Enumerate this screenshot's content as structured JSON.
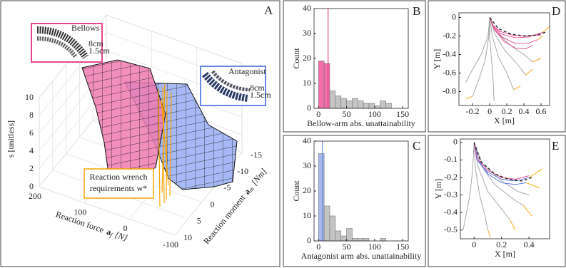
{
  "chart_data": [
    {
      "type": "surface3d",
      "label": "A",
      "zlabel": "s [unitless]",
      "zlim": [
        0,
        10
      ],
      "zticks": [
        0,
        2,
        4,
        6,
        8,
        10
      ],
      "xlabel": "Reaction force",
      "xlabel_symbol": "a",
      "xlabel_sub": "f",
      "xlabel_unit": "[N]",
      "xlim": [
        -100,
        200
      ],
      "xticks": [
        200,
        100,
        0,
        -100
      ],
      "ylabel": "Reaction moment",
      "ylabel_symbol": "a",
      "ylabel_sub": "m",
      "ylabel_unit": "[Nm]",
      "ylim": [
        -15,
        10
      ],
      "yticks": [
        10,
        5,
        0,
        -5,
        -10,
        -15
      ],
      "bellows": {
        "title": "Bellows",
        "color": "#e8468f",
        "dims": [
          "8cm",
          "1.5cm"
        ]
      },
      "antagonist": {
        "title": "Antagonist",
        "color": "#6b88e0",
        "dims": [
          "8cm",
          "1.5cm"
        ]
      },
      "wrench": {
        "lines": [
          "Reaction wrench",
          "requirements  w*"
        ],
        "color": "#f5a300"
      }
    },
    {
      "type": "histogram",
      "label": "B",
      "xlabel": "Bellow-arm abs. unattainability",
      "ylabel": "Count",
      "bins": [
        0,
        10,
        20,
        30,
        40,
        50,
        60,
        70,
        80,
        90,
        100,
        110,
        120,
        130
      ],
      "counts": [
        19,
        18,
        7,
        5,
        4,
        3,
        4,
        3,
        2,
        2,
        1,
        3,
        2
      ],
      "bar_colors": [
        "#f06fa8",
        "#f06fa8",
        "#c4c4c4",
        "#c4c4c4",
        "#c4c4c4",
        "#c4c4c4",
        "#c4c4c4",
        "#c4c4c4",
        "#c4c4c4",
        "#c4c4c4",
        "#c4c4c4",
        "#c4c4c4",
        "#c4c4c4"
      ],
      "marker_line": 17,
      "marker_color": "#e8468f",
      "xlim": [
        -8,
        160
      ],
      "xticks": [
        0,
        50,
        100,
        150
      ],
      "ylim": [
        0,
        40
      ],
      "yticks": [
        0,
        10,
        20,
        30,
        40
      ]
    },
    {
      "type": "histogram",
      "label": "C",
      "xlabel": "Antagonist arm abs. unattainability",
      "ylabel": "Count",
      "bins": [
        0,
        10,
        20,
        30,
        40,
        50,
        60,
        70,
        80,
        90,
        100,
        110,
        120,
        130
      ],
      "counts": [
        35,
        14,
        10,
        4,
        2,
        5,
        1,
        1,
        1,
        0,
        0,
        1,
        0
      ],
      "bar_colors": [
        "#a8b8e8",
        "#c4c4c4",
        "#c4c4c4",
        "#c4c4c4",
        "#c4c4c4",
        "#c4c4c4",
        "#c4c4c4",
        "#c4c4c4",
        "#c4c4c4",
        "#c4c4c4",
        "#c4c4c4",
        "#c4c4c4",
        "#c4c4c4"
      ],
      "marker_line": 7,
      "marker_color": "#6b88e0",
      "xlim": [
        -8,
        160
      ],
      "xticks": [
        0,
        50,
        100,
        150
      ],
      "ylim": [
        0,
        40
      ],
      "yticks": [
        0,
        10,
        20,
        30,
        40
      ]
    },
    {
      "type": "line",
      "label": "D",
      "xlabel": "X [m]",
      "ylabel": "Y [m]",
      "xlim": [
        -0.36,
        0.7
      ],
      "xticks": [
        -0.2,
        0,
        0.2,
        0.4,
        0.6
      ],
      "ylim": [
        -0.95,
        0.05
      ],
      "yticks": [
        0,
        -0.2,
        -0.4,
        -0.6,
        -0.8
      ],
      "series": [
        {
          "color": "#a0a0a0",
          "x": [
            0,
            -0.01,
            -0.05,
            -0.12,
            -0.2
          ],
          "y": [
            0,
            -0.2,
            -0.45,
            -0.65,
            -0.85
          ]
        },
        {
          "color": "#a0a0a0",
          "x": [
            0,
            0.0,
            0.02,
            0.04,
            0.05
          ],
          "y": [
            0,
            -0.22,
            -0.45,
            -0.68,
            -0.9
          ]
        },
        {
          "color": "#a0a0a0",
          "x": [
            0,
            0.03,
            0.1,
            0.2,
            0.28
          ],
          "y": [
            0,
            -0.2,
            -0.42,
            -0.6,
            -0.78
          ]
        },
        {
          "color": "#a0a0a0",
          "x": [
            0,
            0.06,
            0.18,
            0.32,
            0.42
          ],
          "y": [
            0,
            -0.18,
            -0.36,
            -0.5,
            -0.62
          ]
        },
        {
          "color": "#a0a0a0",
          "x": [
            0,
            0.08,
            0.24,
            0.4,
            0.5
          ],
          "y": [
            0,
            -0.16,
            -0.3,
            -0.4,
            -0.48
          ]
        },
        {
          "color": "#a0a0a0",
          "x": [
            0,
            -0.02,
            -0.1,
            -0.2,
            -0.28
          ],
          "y": [
            0,
            -0.2,
            -0.4,
            -0.56,
            -0.7
          ]
        },
        {
          "color": "#e8468f",
          "x": [
            0,
            0.04,
            0.14,
            0.3,
            0.46,
            0.62
          ],
          "y": [
            0,
            -0.1,
            -0.18,
            -0.22,
            -0.21,
            -0.16
          ]
        },
        {
          "color": "#e8468f",
          "x": [
            0,
            0.05,
            0.16,
            0.3,
            0.44,
            0.56
          ],
          "y": [
            0,
            -0.12,
            -0.22,
            -0.28,
            -0.28,
            -0.24
          ]
        },
        {
          "color": "#e8468f",
          "x": [
            0,
            0.06,
            0.17,
            0.3,
            0.42,
            0.5
          ],
          "y": [
            0,
            -0.14,
            -0.26,
            -0.33,
            -0.34,
            -0.3
          ]
        },
        {
          "color": "#e8468f",
          "x": [
            0,
            0.03,
            0.12,
            0.26,
            0.4,
            0.6
          ],
          "y": [
            0,
            -0.08,
            -0.15,
            -0.19,
            -0.2,
            -0.19
          ]
        },
        {
          "color": "#222222",
          "dash": true,
          "x": [
            0,
            0.1,
            0.25,
            0.4,
            0.55,
            0.65
          ],
          "y": [
            0,
            -0.12,
            -0.18,
            -0.2,
            -0.19,
            -0.16
          ]
        },
        {
          "color": "#f5a300",
          "x": [
            0.62,
            0.7
          ],
          "y": [
            -0.16,
            -0.1
          ]
        },
        {
          "color": "#f5a300",
          "x": [
            0.56,
            0.62
          ],
          "y": [
            -0.24,
            -0.2
          ]
        },
        {
          "color": "#f5a300",
          "x": [
            0.28,
            0.36
          ],
          "y": [
            -0.78,
            -0.74
          ]
        },
        {
          "color": "#f5a300",
          "x": [
            -0.2,
            -0.28
          ],
          "y": [
            -0.85,
            -0.88
          ]
        },
        {
          "color": "#f5a300",
          "x": [
            0.5,
            0.6
          ],
          "y": [
            -0.48,
            -0.44
          ]
        },
        {
          "color": "#f5a300",
          "x": [
            0.42,
            0.5
          ],
          "y": [
            -0.62,
            -0.56
          ]
        }
      ]
    },
    {
      "type": "line",
      "label": "E",
      "xlabel": "X [m]",
      "ylabel": "Y [m]",
      "xlim": [
        -0.1,
        0.55
      ],
      "xticks": [
        0,
        0.2,
        0.4
      ],
      "ylim": [
        -0.55,
        0.02
      ],
      "yticks": [
        0,
        -0.1,
        -0.2,
        -0.3,
        -0.4,
        -0.5
      ],
      "series": [
        {
          "color": "#a0a0a0",
          "x": [
            0,
            0.01,
            0.04,
            0.08,
            0.1
          ],
          "y": [
            0,
            -0.15,
            -0.3,
            -0.42,
            -0.5
          ]
        },
        {
          "color": "#a0a0a0",
          "x": [
            0,
            0.03,
            0.1,
            0.2,
            0.26
          ],
          "y": [
            0,
            -0.14,
            -0.28,
            -0.38,
            -0.44
          ]
        },
        {
          "color": "#a0a0a0",
          "x": [
            0,
            0.05,
            0.15,
            0.28,
            0.36
          ],
          "y": [
            0,
            -0.13,
            -0.24,
            -0.32,
            -0.36
          ]
        },
        {
          "color": "#a0a0a0",
          "x": [
            0,
            -0.01,
            -0.03,
            -0.06,
            -0.08
          ],
          "y": [
            0,
            -0.15,
            -0.3,
            -0.42,
            -0.5
          ]
        },
        {
          "color": "#a0a0a0",
          "x": [
            0,
            0.06,
            0.2,
            0.32,
            0.4
          ],
          "y": [
            0,
            -0.12,
            -0.22,
            -0.28,
            -0.3
          ]
        },
        {
          "color": "#5470e0",
          "x": [
            0,
            0.02,
            0.1,
            0.2,
            0.3,
            0.4
          ],
          "y": [
            0,
            -0.1,
            -0.17,
            -0.21,
            -0.22,
            -0.2
          ]
        },
        {
          "color": "#5470e0",
          "x": [
            0,
            0.03,
            0.1,
            0.2,
            0.3,
            0.38
          ],
          "y": [
            0,
            -0.1,
            -0.18,
            -0.23,
            -0.24,
            -0.23
          ]
        },
        {
          "color": "#e8468f",
          "x": [
            0,
            0.02,
            0.1,
            0.2,
            0.3,
            0.4
          ],
          "y": [
            0,
            -0.09,
            -0.16,
            -0.2,
            -0.21,
            -0.19
          ]
        },
        {
          "color": "#222222",
          "dash": true,
          "x": [
            0,
            0.05,
            0.15,
            0.25,
            0.35,
            0.42
          ],
          "y": [
            0,
            -0.11,
            -0.18,
            -0.21,
            -0.22,
            -0.2
          ]
        },
        {
          "color": "#f5a300",
          "x": [
            0.4,
            0.5
          ],
          "y": [
            -0.2,
            -0.15
          ]
        },
        {
          "color": "#f5a300",
          "x": [
            0.38,
            0.48
          ],
          "y": [
            -0.23,
            -0.26
          ]
        },
        {
          "color": "#f5a300",
          "x": [
            0.26,
            0.3
          ],
          "y": [
            -0.44,
            -0.5
          ]
        },
        {
          "color": "#f5a300",
          "x": [
            0.36,
            0.42
          ],
          "y": [
            -0.36,
            -0.42
          ]
        },
        {
          "color": "#f5a300",
          "x": [
            0.1,
            0.12
          ],
          "y": [
            -0.5,
            -0.54
          ]
        }
      ]
    }
  ]
}
